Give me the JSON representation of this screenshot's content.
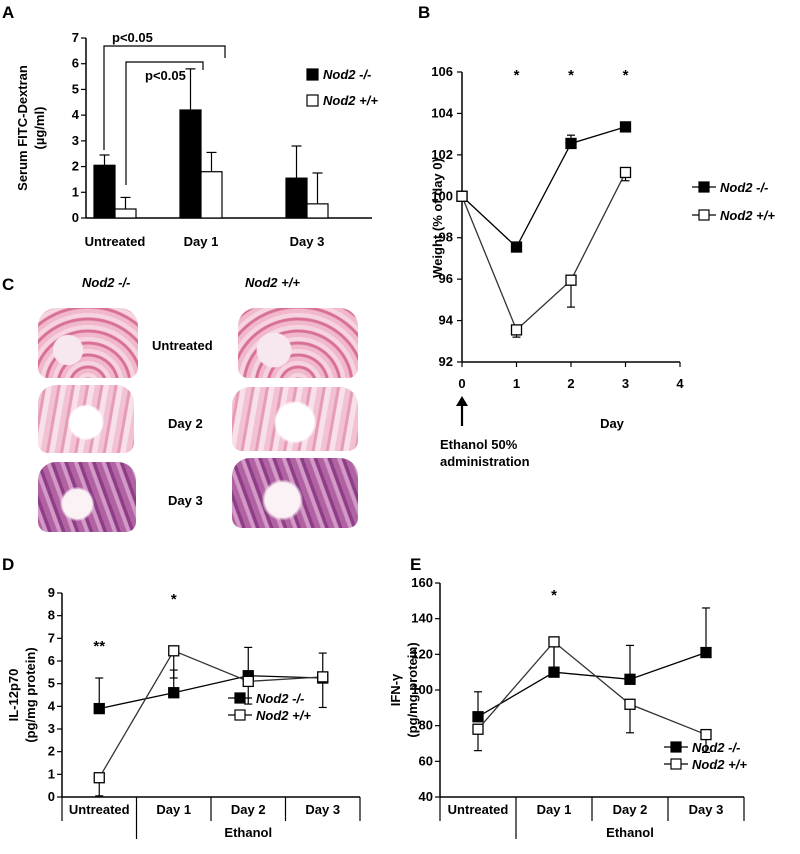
{
  "panels": {
    "a": "A",
    "b": "B",
    "c": "C",
    "d": "D",
    "e": "E"
  },
  "histology": {
    "col_left": "Nod2 -/-",
    "col_right": "Nod2 +/+",
    "rows": [
      "Untreated",
      "Day 2",
      "Day 3"
    ]
  },
  "chart_data": [
    {
      "id": "A",
      "type": "bar",
      "ylabel": "Serum FITC-Dextran (µg/ml)",
      "ylabel_lines": [
        "Serum FITC-Dextran",
        "(µg/ml)"
      ],
      "ylim": [
        0,
        7
      ],
      "yticks": [
        "0",
        "1",
        "2",
        "3",
        "4",
        "5",
        "6",
        "7"
      ],
      "categories": [
        "Untreated",
        "Day 1",
        "Day 3"
      ],
      "series": [
        {
          "name": "Nod2 -/-",
          "values": [
            2.05,
            4.2,
            1.55
          ],
          "errors": [
            0.4,
            1.6,
            1.25
          ],
          "fill": "#000000"
        },
        {
          "name": "Nod2 +/+",
          "values": [
            0.35,
            1.8,
            0.55
          ],
          "errors": [
            0.45,
            0.75,
            1.2
          ],
          "fill": "#ffffff"
        }
      ],
      "annotations": [
        "p<0.05",
        "p<0.05"
      ],
      "legend_position": "right"
    },
    {
      "id": "B",
      "type": "line",
      "xlabel": "Day",
      "ylabel": "Weight (% of day 0)",
      "xlim": [
        0,
        4
      ],
      "ylim": [
        92,
        106
      ],
      "xticks": [
        "0",
        "1",
        "2",
        "3",
        "4"
      ],
      "yticks": [
        "92",
        "94",
        "96",
        "98",
        "100",
        "102",
        "104",
        "106"
      ],
      "x": [
        0,
        1,
        2,
        3
      ],
      "series": [
        {
          "name": "Nod2 -/-",
          "marker": "filled-square",
          "values": [
            100,
            97.55,
            102.55,
            103.35
          ],
          "errors": [
            0,
            0,
            0.4,
            0.1
          ]
        },
        {
          "name": "Nod2 +/+",
          "marker": "open-square",
          "values": [
            100,
            93.55,
            95.95,
            101.15
          ],
          "errors": [
            0,
            0.35,
            1.3,
            0.4
          ]
        }
      ],
      "significance": [
        "*",
        "*",
        "*"
      ],
      "annotation_lines": [
        "Ethanol 50%",
        "administration"
      ],
      "legend_position": "right"
    },
    {
      "id": "D",
      "type": "line",
      "ylabel": "IL-12p70 (pg/mg protein)",
      "ylabel_lines": [
        "IL-12p70",
        "(pg/mg protein)"
      ],
      "ylim": [
        0,
        9
      ],
      "yticks": [
        "0",
        "1",
        "2",
        "3",
        "4",
        "5",
        "6",
        "7",
        "8",
        "9"
      ],
      "categories": [
        "Untreated",
        "Day 1",
        "Day 2",
        "Day 3"
      ],
      "group_label": "Ethanol",
      "series": [
        {
          "name": "Nod2 -/-",
          "marker": "filled-square",
          "values": [
            3.9,
            4.6,
            5.35,
            5.25
          ],
          "errors": [
            1.35,
            1.0,
            1.25,
            1.1
          ]
        },
        {
          "name": "Nod2 +/+",
          "marker": "open-square",
          "values": [
            0.85,
            6.45,
            5.1,
            5.3
          ],
          "errors": [
            0.8,
            1.2,
            1.0,
            1.35
          ]
        }
      ],
      "significance": [
        "**",
        "*",
        "",
        ""
      ],
      "legend_position": "right"
    },
    {
      "id": "E",
      "type": "line",
      "ylabel": "IFN-γ (pg/mg protein)",
      "ylabel_lines": [
        "IFN-γ",
        "(pg/mg protein)"
      ],
      "ylim": [
        40,
        160
      ],
      "yticks": [
        "40",
        "60",
        "80",
        "100",
        "120",
        "140",
        "160"
      ],
      "categories": [
        "Untreated",
        "Day 1",
        "Day 2",
        "Day 3"
      ],
      "group_label": "Ethanol",
      "series": [
        {
          "name": "Nod2 -/-",
          "marker": "filled-square",
          "values": [
            85,
            110,
            106,
            121
          ],
          "errors": [
            14,
            17,
            19,
            25
          ]
        },
        {
          "name": "Nod2 +/+",
          "marker": "open-square",
          "values": [
            78,
            127,
            92,
            75
          ],
          "errors": [
            12,
            19,
            16,
            10
          ]
        }
      ],
      "significance": [
        "",
        "*",
        "",
        ""
      ],
      "legend_position": "bottom-right"
    }
  ]
}
